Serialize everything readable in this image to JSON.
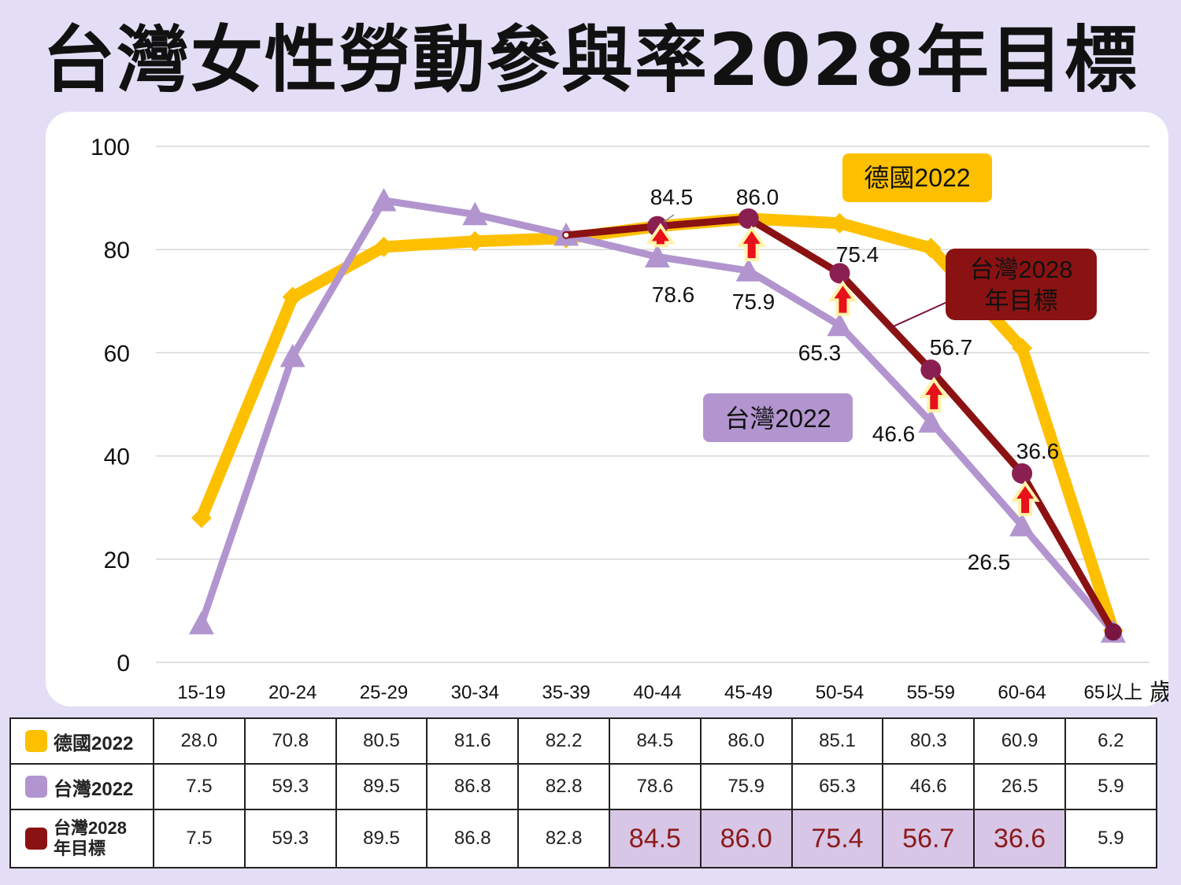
{
  "title": "台灣女性勞動參與率2028年目標",
  "colors": {
    "germany": "#fdc000",
    "taiwan2022": "#b295cf",
    "taiwan2028": "#8b1212",
    "background": "#e3def5"
  },
  "chart_data": {
    "type": "line",
    "ylabel": "%",
    "xlabel": "歲",
    "ylim": [
      0,
      100
    ],
    "yticks": [
      0,
      20,
      40,
      60,
      80,
      100
    ],
    "grid": true,
    "categories": [
      "15-19",
      "20-24",
      "25-29",
      "30-34",
      "35-39",
      "40-44",
      "45-49",
      "50-54",
      "55-59",
      "60-64",
      "65以上"
    ],
    "series": [
      {
        "name": "德國2022",
        "color": "#fdc000",
        "marker": "diamond",
        "values": [
          28.0,
          70.8,
          80.5,
          81.6,
          82.2,
          84.5,
          86.0,
          85.1,
          80.3,
          60.9,
          6.2
        ]
      },
      {
        "name": "台灣2022",
        "color": "#b295cf",
        "marker": "triangle",
        "values": [
          7.5,
          59.3,
          89.5,
          86.8,
          82.8,
          78.6,
          75.9,
          65.3,
          46.6,
          26.5,
          5.9
        ]
      },
      {
        "name": "台灣2028年目標",
        "color": "#8b1212",
        "marker": "circle",
        "values": [
          null,
          null,
          null,
          null,
          82.8,
          84.5,
          86.0,
          75.4,
          56.7,
          36.6,
          5.9
        ]
      }
    ],
    "annotations_target": [
      "84.5",
      "86.0",
      "75.4",
      "56.7",
      "36.6"
    ],
    "annotations_taiwan": [
      "78.6",
      "75.9",
      "65.3",
      "46.6",
      "26.5"
    ],
    "legend_labels": {
      "germany": "德國2022",
      "taiwan2022": "台灣2022",
      "taiwan2028_line1": "台灣2028",
      "taiwan2028_line2": "年目標"
    }
  },
  "table": {
    "rows": [
      {
        "label": "德國2022",
        "values": [
          "28.0",
          "70.8",
          "80.5",
          "81.6",
          "82.2",
          "84.5",
          "86.0",
          "85.1",
          "80.3",
          "60.9",
          "6.2"
        ]
      },
      {
        "label": "台灣2022",
        "values": [
          "7.5",
          "59.3",
          "89.5",
          "86.8",
          "82.8",
          "78.6",
          "75.9",
          "65.3",
          "46.6",
          "26.5",
          "5.9"
        ]
      },
      {
        "label_line1": "台灣2028",
        "label_line2": "年目標",
        "values": [
          "7.5",
          "59.3",
          "89.5",
          "86.8",
          "82.8",
          "84.5",
          "86.0",
          "75.4",
          "56.7",
          "36.6",
          "5.9"
        ]
      }
    ]
  }
}
